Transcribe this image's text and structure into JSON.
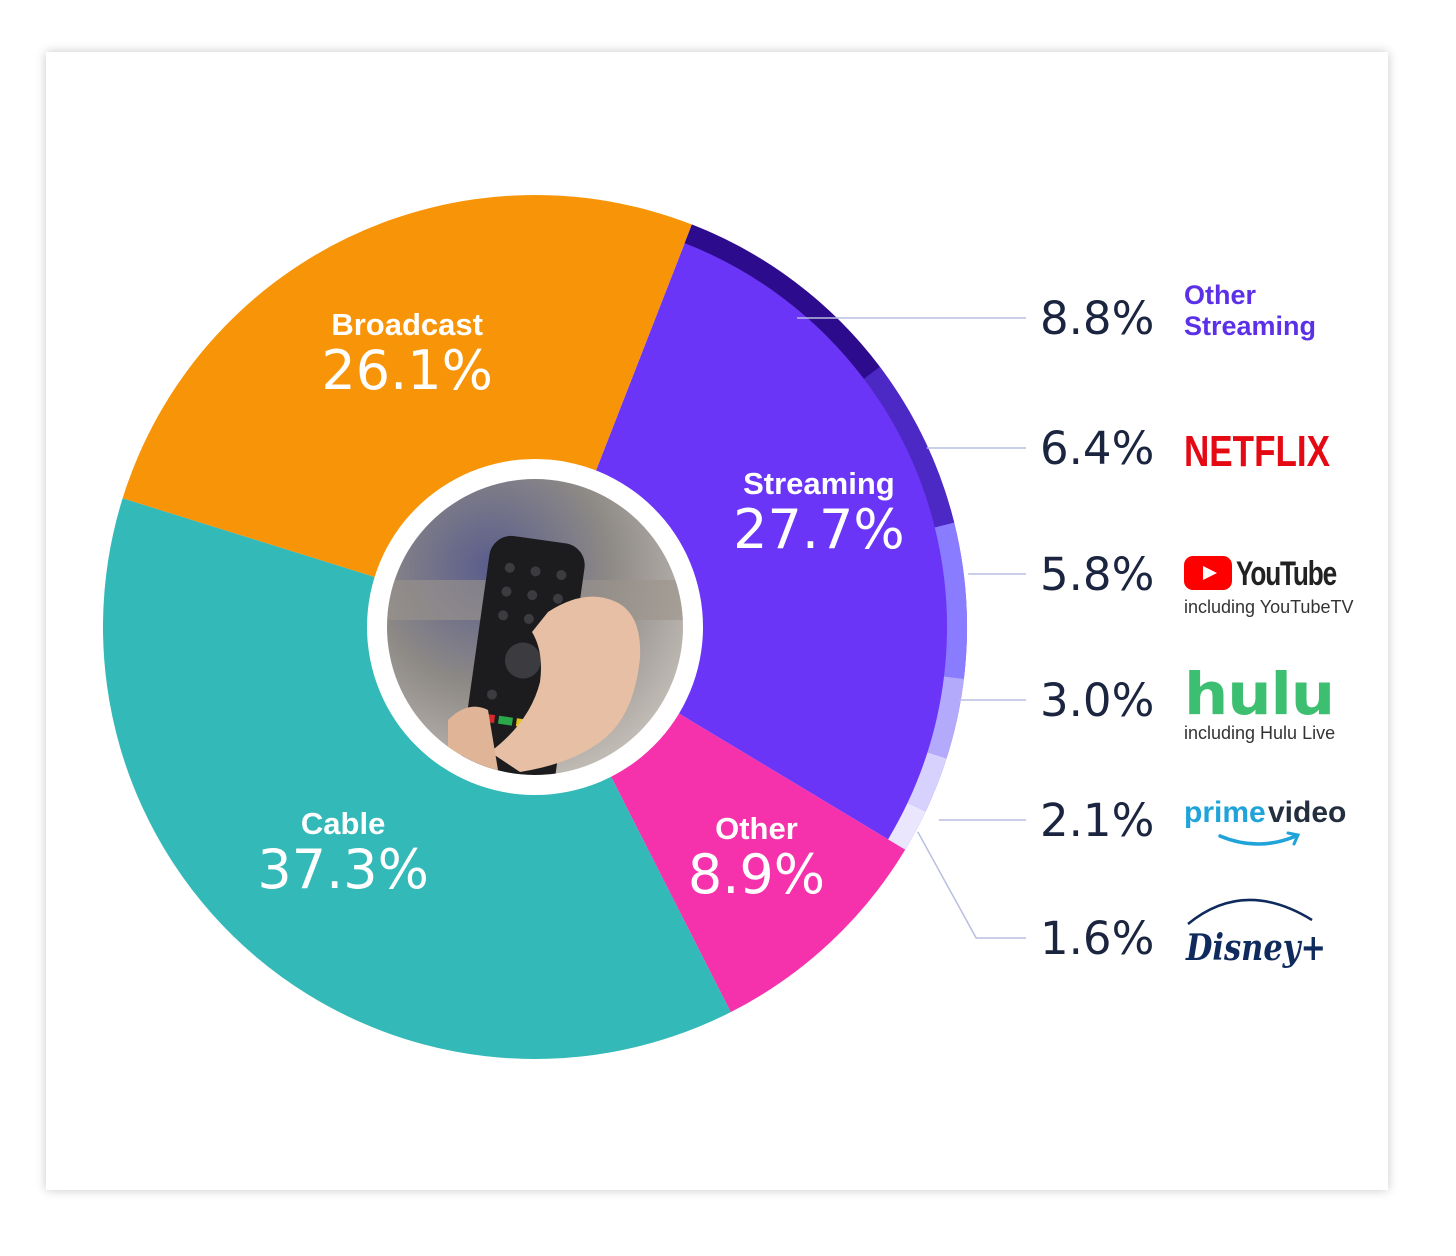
{
  "chart_data": {
    "type": "pie",
    "segments": [
      {
        "name": "Streaming",
        "value": 27.7,
        "value_label": "27.7%",
        "color": "#6b35f7"
      },
      {
        "name": "Other",
        "value": 8.9,
        "value_label": "8.9%",
        "color": "#f531ac"
      },
      {
        "name": "Cable",
        "value": 37.3,
        "value_label": "37.3%",
        "color": "#33b9b7"
      },
      {
        "name": "Broadcast",
        "value": 26.1,
        "value_label": "26.1%",
        "color": "#f89408"
      }
    ],
    "streaming_breakdown": [
      {
        "name": "Other Streaming",
        "name_lines": [
          "Other",
          "Streaming"
        ],
        "value": 8.8,
        "value_label": "8.8%",
        "color": "#2c0b8c",
        "logo": "text-other-streaming"
      },
      {
        "name": "Netflix",
        "brand": "NETFLIX",
        "value": 6.4,
        "value_label": "6.4%",
        "color": "#4c28c4",
        "logo": "netflix-logo"
      },
      {
        "name": "YouTube",
        "brand": "YouTube",
        "subtitle": "including YouTubeTV",
        "value": 5.8,
        "value_label": "5.8%",
        "color": "#8a7cff",
        "logo": "youtube-logo"
      },
      {
        "name": "Hulu",
        "brand": "hulu",
        "subtitle": "including Hulu Live",
        "value": 3.0,
        "value_label": "3.0%",
        "color": "#b3aafc",
        "logo": "hulu-logo"
      },
      {
        "name": "Prime Video",
        "brand_parts": [
          "prime",
          "video"
        ],
        "value": 2.1,
        "value_label": "2.1%",
        "color": "#d6d1fd",
        "logo": "prime-video-logo"
      },
      {
        "name": "Disney+",
        "brand": "Disney+",
        "value": 1.6,
        "value_label": "1.6%",
        "color": "#e9e6fe",
        "logo": "disney-plus-logo"
      }
    ],
    "center_image": "tv-remote-photo"
  }
}
